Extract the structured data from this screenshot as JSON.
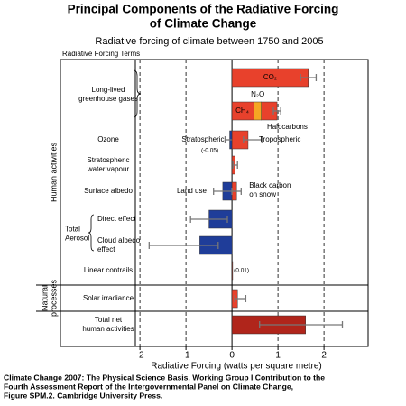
{
  "chart_data": {
    "type": "bar",
    "title": [
      "Principal Components of the Radiative Forcing",
      "of Climate Change"
    ],
    "subtitle": "Radiative forcing of climate between 1750 and 2005",
    "terms_header": "Radiative Forcing Terms",
    "x_label": "Radiative Forcing  (watts per square metre)",
    "xlim": [
      -2.1,
      2.9
    ],
    "xticks": [
      -2,
      -1,
      0,
      1,
      2
    ],
    "grid": true,
    "sections": [
      {
        "label": [
          "Human activities"
        ],
        "terms": [
          {
            "label": [
              "Long-lived",
              "greenhouse gases"
            ],
            "lines": [
              {
                "segments": [
                  {
                    "name": "CO₂",
                    "value": 1.66,
                    "color": "#e8412c"
                  }
                ],
                "range": [
                  1.49,
                  1.83
                ]
              },
              {
                "segments": [
                  {
                    "name": "CH₄",
                    "value": 0.48,
                    "color": "#e8412c"
                  },
                  {
                    "name": "N₂O",
                    "value": 0.16,
                    "color": "#f5a623"
                  },
                  {
                    "name": "Halocarbons",
                    "value": 0.34,
                    "color": "#e8412c"
                  }
                ],
                "range": [
                  0.9,
                  1.06
                ]
              }
            ]
          },
          {
            "label": [
              "Ozone"
            ],
            "lines": [
              {
                "segments": [
                  {
                    "name": "Stratospheric",
                    "value": -0.05,
                    "value_label": "(-0.05)",
                    "color": "#1f3d99",
                    "range": [
                      -0.15,
                      0.05
                    ]
                  },
                  {
                    "name": "Tropospheric",
                    "value": 0.35,
                    "color": "#e8412c",
                    "range": [
                      0.25,
                      0.65
                    ]
                  }
                ]
              }
            ]
          },
          {
            "label": [
              "Stratospheric",
              "water vapour"
            ],
            "lines": [
              {
                "segments": [
                  {
                    "value": 0.07,
                    "color": "#e8412c",
                    "range": [
                      0.02,
                      0.12
                    ]
                  }
                ]
              }
            ]
          },
          {
            "label": [
              "Surface albedo"
            ],
            "lines": [
              {
                "segments": [
                  {
                    "name": "Land use",
                    "value": -0.2,
                    "color": "#1f3d99",
                    "range": [
                      -0.4,
                      0.0
                    ]
                  },
                  {
                    "name": [
                      "Black carbon",
                      "on snow"
                    ],
                    "value": 0.1,
                    "color": "#e8412c",
                    "range": [
                      0.0,
                      0.2
                    ]
                  }
                ]
              }
            ]
          },
          {
            "label": [
              "Total",
              "Aerosol"
            ],
            "lines": [
              {
                "label": [
                  "Direct effect"
                ],
                "segments": [
                  {
                    "value": -0.5,
                    "color": "#1f3d99",
                    "range": [
                      -0.9,
                      -0.1
                    ]
                  }
                ]
              },
              {
                "label": [
                  "Cloud albedo",
                  "effect"
                ],
                "segments": [
                  {
                    "value": -0.7,
                    "color": "#1f3d99",
                    "range": [
                      -1.8,
                      -0.3
                    ]
                  }
                ]
              }
            ]
          },
          {
            "label": [
              "Linear contrails"
            ],
            "lines": [
              {
                "segments": [
                  {
                    "value": 0.01,
                    "value_label": "(0.01)",
                    "color": "#e8412c"
                  }
                ]
              }
            ]
          }
        ]
      },
      {
        "label": [
          "Natural",
          "processes"
        ],
        "terms": [
          {
            "label": [
              "Solar irradiance"
            ],
            "lines": [
              {
                "segments": [
                  {
                    "value": 0.12,
                    "color": "#e8412c",
                    "range": [
                      0.06,
                      0.3
                    ]
                  }
                ]
              }
            ]
          }
        ]
      },
      {
        "terms": [
          {
            "label": [
              "Total net",
              "human activities"
            ],
            "lines": [
              {
                "segments": [
                  {
                    "value": 1.6,
                    "color": "#b0251b",
                    "range": [
                      0.6,
                      2.4
                    ]
                  }
                ]
              }
            ]
          }
        ]
      }
    ],
    "source": [
      "Climate Change 2007: The Physical Science Basis. Working Group I Contribution to the",
      "Fourth Assessment Report of the Intergovernmental Panel on Climate Change,",
      "Figure SPM.2. Cambridge University Press."
    ]
  }
}
